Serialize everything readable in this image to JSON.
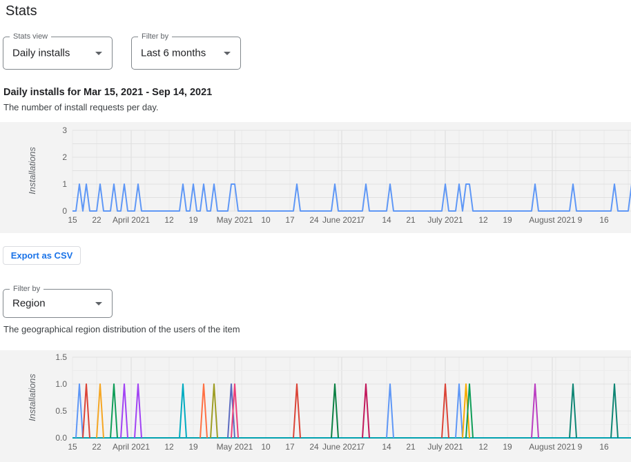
{
  "page": {
    "title": "Stats"
  },
  "controls": {
    "stats_view": {
      "label": "Stats view",
      "value": "Daily installs"
    },
    "time_filter": {
      "label": "Filter by",
      "value": "Last 6 months"
    },
    "region_filter": {
      "label": "Filter by",
      "value": "Region"
    }
  },
  "sections": {
    "daily": {
      "heading": "Daily installs for Mar 15, 2021 - Sep 14, 2021",
      "subheading": "The number of install requests per day.",
      "export_label": "Export as CSV"
    },
    "region": {
      "description": "The geographical region distribution of the users of the item"
    }
  },
  "chart_data": [
    {
      "type": "line",
      "name": "daily-installs",
      "ylabel": "Installations",
      "ylim": [
        0,
        3
      ],
      "y_ticks": [
        "0",
        "1",
        "2",
        "3"
      ],
      "x_range": "Mar 15, 2021 to Sep 14, 2021 (day offsets from Mar 15; right side clipped at viewport)",
      "x_ticks": [
        {
          "label": "15",
          "day": 0
        },
        {
          "label": "22",
          "day": 7
        },
        {
          "label": "April 2021",
          "day": 17,
          "month": true
        },
        {
          "label": "12",
          "day": 28
        },
        {
          "label": "19",
          "day": 35
        },
        {
          "label": "May 2021",
          "day": 47,
          "month": true
        },
        {
          "label": "10",
          "day": 56
        },
        {
          "label": "17",
          "day": 63
        },
        {
          "label": "24",
          "day": 70
        },
        {
          "label": "June 2021",
          "day": 78,
          "month": true
        },
        {
          "label": "7",
          "day": 84
        },
        {
          "label": "14",
          "day": 91
        },
        {
          "label": "21",
          "day": 98
        },
        {
          "label": "July 2021",
          "day": 108,
          "month": true
        },
        {
          "label": "12",
          "day": 119
        },
        {
          "label": "19",
          "day": 126
        },
        {
          "label": "August 2021",
          "day": 139,
          "month": true
        },
        {
          "label": "9",
          "day": 147
        },
        {
          "label": "16",
          "day": 154
        }
      ],
      "line_color": "#5e97f6",
      "spike_value": 1,
      "spike_days": [
        2,
        4,
        8,
        12,
        15,
        19,
        32,
        35,
        38,
        41,
        46,
        47,
        65,
        76,
        85,
        92,
        108,
        112,
        114,
        115,
        134,
        145,
        157,
        162
      ],
      "grid": true,
      "legend": "none"
    },
    {
      "type": "line",
      "name": "region-installs",
      "ylabel": "Installations",
      "ylim": [
        0,
        1.5
      ],
      "y_ticks": [
        "0.0",
        "0.5",
        "1.0",
        "1.5"
      ],
      "x_range": "Mar 15, 2021 to Sep 14, 2021 (day offsets from Mar 15; right side clipped at viewport)",
      "x_ticks": [
        {
          "label": "15",
          "day": 0
        },
        {
          "label": "22",
          "day": 7
        },
        {
          "label": "April 2021",
          "day": 17,
          "month": true
        },
        {
          "label": "12",
          "day": 28
        },
        {
          "label": "19",
          "day": 35
        },
        {
          "label": "May 2021",
          "day": 47,
          "month": true
        },
        {
          "label": "10",
          "day": 56
        },
        {
          "label": "17",
          "day": 63
        },
        {
          "label": "24",
          "day": 70
        },
        {
          "label": "June 2021",
          "day": 78,
          "month": true
        },
        {
          "label": "7",
          "day": 84
        },
        {
          "label": "14",
          "day": 91
        },
        {
          "label": "21",
          "day": 98
        },
        {
          "label": "July 2021",
          "day": 108,
          "month": true
        },
        {
          "label": "12",
          "day": 119
        },
        {
          "label": "19",
          "day": 126
        },
        {
          "label": "August 2021",
          "day": 139,
          "month": true
        },
        {
          "label": "9",
          "day": 147
        },
        {
          "label": "16",
          "day": 154
        }
      ],
      "baseline_color": "#00a0af",
      "spike_value": 1,
      "spikes": [
        {
          "day": 2,
          "color": "#5e97f6"
        },
        {
          "day": 4,
          "color": "#db4437"
        },
        {
          "day": 8,
          "color": "#f5a623"
        },
        {
          "day": 12,
          "color": "#0f9d58"
        },
        {
          "day": 15,
          "color": "#a142f4"
        },
        {
          "day": 19,
          "color": "#a142f4"
        },
        {
          "day": 32,
          "color": "#00abc0"
        },
        {
          "day": 38,
          "color": "#ff7043"
        },
        {
          "day": 41,
          "color": "#9e9d24"
        },
        {
          "day": 46,
          "color": "#5c6bc0"
        },
        {
          "day": 47,
          "color": "#ec407a"
        },
        {
          "day": 65,
          "color": "#db4437"
        },
        {
          "day": 76,
          "color": "#0b8043"
        },
        {
          "day": 85,
          "color": "#c2185b"
        },
        {
          "day": 92,
          "color": "#5e97f6"
        },
        {
          "day": 108,
          "color": "#db4437"
        },
        {
          "day": 112,
          "color": "#5e97f6"
        },
        {
          "day": 114,
          "color": "#f9ab00"
        },
        {
          "day": 115,
          "color": "#0f9d58"
        },
        {
          "day": 134,
          "color": "#ba3dc1"
        },
        {
          "day": 145,
          "color": "#0e8574"
        },
        {
          "day": 157,
          "color": "#0e8574"
        }
      ],
      "grid": true,
      "legend": "none"
    }
  ],
  "chart_style": {
    "panel_bg": "#f3f3f3",
    "grid_major": "#e0e0e0",
    "grid_minor": "#ececec",
    "grid_week": "#e8e8e8",
    "grid_month": "#dbdbdb",
    "axis_text": "#616161"
  }
}
